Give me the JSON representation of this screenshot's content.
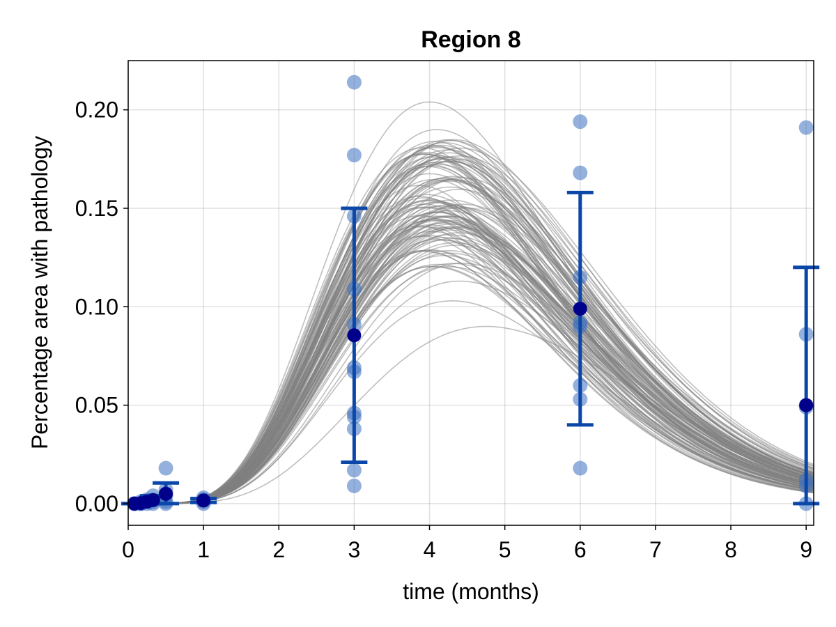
{
  "chart_data": {
    "type": "line",
    "title": "Region 8",
    "xlabel": "time (months)",
    "ylabel": "Percentage area with pathology",
    "xlim": [
      0,
      9.1
    ],
    "ylim": [
      -0.011,
      0.225
    ],
    "x_ticks": [
      0,
      1,
      2,
      3,
      4,
      5,
      6,
      7,
      8,
      9
    ],
    "x_tick_labels": [
      "0",
      "1",
      "2",
      "3",
      "4",
      "5",
      "6",
      "7",
      "8",
      "9"
    ],
    "y_ticks": [
      0.0,
      0.05,
      0.1,
      0.15,
      0.2
    ],
    "y_tick_labels": [
      "0.00",
      "0.05",
      "0.10",
      "0.15",
      "0.20"
    ],
    "grid": true,
    "colors": {
      "simulation": "#7f7f7f",
      "observation": "#3d6fbf",
      "error_bar": "#0a47a9",
      "mean": "#00008b"
    },
    "simulations": {
      "model": "peaked curve y = A * (x/tp)^k * exp(k*(1 - x/tp))",
      "count": 120,
      "peak_time_range": [
        3.8,
        4.8
      ],
      "peak_value_range": [
        0.09,
        0.204
      ],
      "examples": [
        {
          "peak_time": 4.0,
          "peak_value": 0.204
        },
        {
          "peak_time": 4.1,
          "peak_value": 0.19
        },
        {
          "peak_time": 4.4,
          "peak_value": 0.113
        },
        {
          "peak_time": 4.3,
          "peak_value": 0.103
        },
        {
          "peak_time": 4.75,
          "peak_value": 0.09
        }
      ]
    },
    "observations": [
      {
        "x": 0.083,
        "y": [
          0.0,
          0.0,
          0.0,
          0.0
        ]
      },
      {
        "x": 0.167,
        "y": [
          0.0,
          0.001,
          0.0,
          0.0
        ]
      },
      {
        "x": 0.25,
        "y": [
          0.001,
          0.002,
          0.0,
          0.001
        ]
      },
      {
        "x": 0.33,
        "y": [
          0.002,
          0.004,
          0.001,
          0.0
        ]
      },
      {
        "x": 0.5,
        "y": [
          0.018,
          0.007,
          0.004,
          0.0,
          0.001,
          0.005
        ]
      },
      {
        "x": 1.0,
        "y": [
          0.003,
          0.002,
          0.001,
          0.0,
          0.002
        ]
      },
      {
        "x": 3.0,
        "y": [
          0.214,
          0.177,
          0.146,
          0.109,
          0.091,
          0.069,
          0.067,
          0.046,
          0.044,
          0.038,
          0.017,
          0.009
        ]
      },
      {
        "x": 6.0,
        "y": [
          0.194,
          0.168,
          0.115,
          0.092,
          0.09,
          0.06,
          0.053,
          0.018
        ]
      },
      {
        "x": 9.0,
        "y": [
          0.191,
          0.086,
          0.05,
          0.049,
          0.012,
          0.009,
          0.0
        ]
      }
    ],
    "means": [
      {
        "x": 0.083,
        "y": 0.0,
        "lower": 0.0,
        "upper": 0.0
      },
      {
        "x": 0.167,
        "y": 0.0003,
        "lower": 0.0,
        "upper": 0.001
      },
      {
        "x": 0.25,
        "y": 0.001,
        "lower": 0.0,
        "upper": 0.002
      },
      {
        "x": 0.33,
        "y": 0.0018,
        "lower": 0.0,
        "upper": 0.004
      },
      {
        "x": 0.5,
        "y": 0.005,
        "lower": 0.0,
        "upper": 0.0105
      },
      {
        "x": 1.0,
        "y": 0.0016,
        "lower": 0.0006,
        "upper": 0.0026
      },
      {
        "x": 3.0,
        "y": 0.0855,
        "lower": 0.021,
        "upper": 0.15
      },
      {
        "x": 6.0,
        "y": 0.099,
        "lower": 0.04,
        "upper": 0.158
      },
      {
        "x": 9.0,
        "y": 0.05,
        "lower": 0.0,
        "upper": 0.12
      }
    ]
  }
}
